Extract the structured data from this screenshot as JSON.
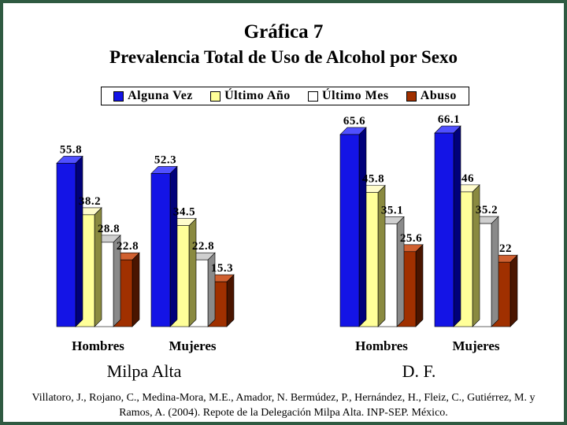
{
  "title": "Gráfica 7",
  "subtitle": "Prevalencia Total de Uso de Alcohol por Sexo",
  "legend": [
    {
      "label": "Alguna Vez",
      "color": "#1414e6"
    },
    {
      "label": "Último Año",
      "color": "#ffff99"
    },
    {
      "label": "Último Mes",
      "color": "#ffffff"
    },
    {
      "label": "Abuso",
      "color": "#a03000"
    }
  ],
  "source": "Villatoro, J., Rojano, C., Medina-Mora, M.E., Amador, N. Bermúdez, P., Hernández, H., Fleiz, C., Gutiérrez, M. y Ramos, A. (2004). Repote de la Delegación Milpa Alta. INP-SEP. México.",
  "chart_data": [
    {
      "type": "bar",
      "title": "Milpa Alta",
      "categories": [
        "Hombres",
        "Mujeres"
      ],
      "series": [
        {
          "name": "Alguna Vez",
          "values": [
            55.8,
            52.3
          ]
        },
        {
          "name": "Último Año",
          "values": [
            38.2,
            34.5
          ]
        },
        {
          "name": "Último Mes",
          "values": [
            28.8,
            22.8
          ]
        },
        {
          "name": "Abuso",
          "values": [
            22.8,
            15.3
          ]
        }
      ],
      "data_labels": [
        [
          "55.8",
          "38.2",
          "28.8",
          "22.8"
        ],
        [
          "52.3",
          "34.5",
          "22.8",
          "15.3"
        ]
      ],
      "ylim": [
        0,
        70
      ],
      "grid": false,
      "legend_position": "top"
    },
    {
      "type": "bar",
      "title": "D. F.",
      "categories": [
        "Hombres",
        "Mujeres"
      ],
      "series": [
        {
          "name": "Alguna Vez",
          "values": [
            65.6,
            66.1
          ]
        },
        {
          "name": "Último Año",
          "values": [
            45.8,
            46
          ]
        },
        {
          "name": "Último Mes",
          "values": [
            35.1,
            35.2
          ]
        },
        {
          "name": "Abuso",
          "values": [
            25.6,
            22
          ]
        }
      ],
      "data_labels": [
        [
          "65.6",
          "45.8",
          "35.1",
          "25.6"
        ],
        [
          "66.1",
          "46",
          "35.2",
          "22"
        ]
      ],
      "ylim": [
        0,
        70
      ],
      "grid": false,
      "legend_position": "top"
    }
  ]
}
